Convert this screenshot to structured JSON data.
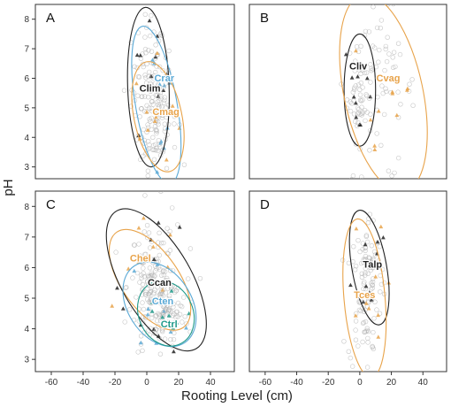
{
  "chart_data": {
    "type": "scatter",
    "xlabel": "Rooting Level (cm)",
    "ylabel": "pH",
    "xlim": [
      -70,
      55
    ],
    "ylim": [
      2.6,
      8.5
    ],
    "xticks": [
      "-60",
      "-40",
      "-20",
      "0",
      "20",
      "40"
    ],
    "yticks": [
      "3",
      "4",
      "5",
      "6",
      "7",
      "8"
    ],
    "grid": false,
    "colors": {
      "black": "#222222",
      "blue": "#5aa9d6",
      "orange": "#e8a34a",
      "teal": "#1f9a8a",
      "gray": "#b0b0b0"
    },
    "panels": [
      {
        "letter": "A",
        "species": [
          {
            "name": "Clim",
            "color": "black",
            "label_at": [
              2,
              5.55
            ],
            "ellipse": {
              "cx": 1,
              "cy": 5.7,
              "rx": 13,
              "ry": 2.7,
              "angle": -2
            }
          },
          {
            "name": "Crar",
            "color": "blue",
            "label_at": [
              11,
              5.9
            ],
            "ellipse": {
              "cx": 6,
              "cy": 5.1,
              "rx": 13,
              "ry": 2.7,
              "angle": -10
            }
          },
          {
            "name": "Cmag",
            "color": "orange",
            "label_at": [
              12,
              4.75
            ],
            "ellipse": {
              "cx": 7,
              "cy": 4.7,
              "rx": 15,
              "ry": 1.9,
              "angle": -12
            }
          }
        ]
      },
      {
        "letter": "B",
        "species": [
          {
            "name": "Cliv",
            "color": "black",
            "label_at": [
              -1,
              6.3
            ],
            "ellipse": {
              "cx": 0,
              "cy": 5.6,
              "rx": 10,
              "ry": 1.9,
              "angle": 0
            }
          },
          {
            "name": "Cvag",
            "color": "orange",
            "label_at": [
              18,
              5.9
            ],
            "ellipse": {
              "cx": 15,
              "cy": 5.5,
              "rx": 25,
              "ry": 3.4,
              "angle": -12
            }
          }
        ]
      },
      {
        "letter": "C",
        "species": [
          {
            "name": "Chel",
            "color": "orange",
            "label_at": [
              -4,
              6.2
            ],
            "ellipse": {
              "cx": 2,
              "cy": 5.6,
              "rx": 18,
              "ry": 1.9,
              "angle": -35
            }
          },
          {
            "name": "Ccan",
            "color": "black",
            "label_at": [
              8,
              5.4
            ],
            "ellipse": {
              "cx": 6,
              "cy": 5.6,
              "rx": 22,
              "ry": 2.6,
              "angle": -30
            }
          },
          {
            "name": "Cten",
            "color": "blue",
            "label_at": [
              10,
              4.8
            ],
            "ellipse": {
              "cx": 8,
              "cy": 4.8,
              "rx": 20,
              "ry": 1.5,
              "angle": -33
            }
          },
          {
            "name": "Ctrl",
            "color": "teal",
            "label_at": [
              14,
              4.05
            ],
            "ellipse": {
              "cx": 12,
              "cy": 4.5,
              "rx": 17,
              "ry": 1.1,
              "angle": -25
            }
          }
        ]
      },
      {
        "letter": "D",
        "species": [
          {
            "name": "Talp",
            "color": "black",
            "label_at": [
              8,
              6.0
            ],
            "ellipse": {
              "cx": 6,
              "cy": 6.0,
              "rx": 11,
              "ry": 1.9,
              "angle": -10
            }
          },
          {
            "name": "Tces",
            "color": "orange",
            "label_at": [
              3,
              5.0
            ],
            "ellipse": {
              "cx": 3,
              "cy": 5.0,
              "rx": 13,
              "ry": 2.6,
              "angle": -5
            }
          }
        ]
      }
    ]
  }
}
